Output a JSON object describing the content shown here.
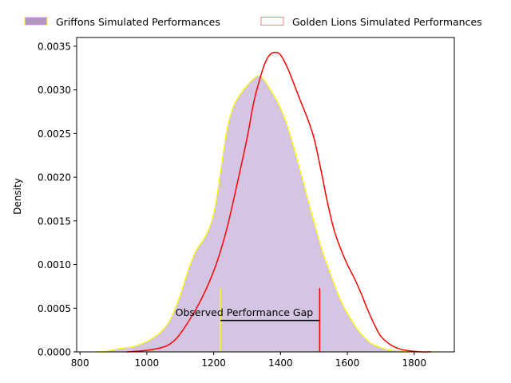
{
  "chart_data": {
    "type": "area",
    "title": "",
    "xlabel": "",
    "ylabel": "Density",
    "xlim": [
      790,
      1920
    ],
    "ylim": [
      0,
      0.0036
    ],
    "xticks": [
      800,
      1000,
      1200,
      1400,
      1600,
      1800
    ],
    "xtick_labels": [
      "800",
      "1000",
      "1200",
      "1400",
      "1600",
      "1800"
    ],
    "yticks": [
      0,
      0.0005,
      0.001,
      0.0015,
      0.002,
      0.0025,
      0.003,
      0.0035
    ],
    "ytick_labels": [
      "0.0000",
      "0.0005",
      "0.0010",
      "0.0015",
      "0.0020",
      "0.0025",
      "0.0030",
      "0.0035"
    ],
    "grid": false,
    "legend_placement": "top, above plot, two columns",
    "series": [
      {
        "name": "Griffons Simulated Performances",
        "style": "filled",
        "fill_color": "#9b72b9",
        "fill_opacity": 0.42,
        "line_color": "#ffff00",
        "x": [
          845,
          880,
          920,
          960,
          1000,
          1040,
          1070,
          1100,
          1125,
          1150,
          1175,
          1200,
          1220,
          1240,
          1260,
          1280,
          1300,
          1320,
          1335,
          1350,
          1370,
          1390,
          1410,
          1430,
          1450,
          1470,
          1490,
          1510,
          1530,
          1550,
          1570,
          1590,
          1610,
          1630,
          1650,
          1670,
          1700,
          1730,
          1760,
          1800,
          1840,
          1870
        ],
        "values": [
          0.0,
          1e-05,
          4e-05,
          6e-05,
          0.00012,
          0.00022,
          0.00037,
          0.00065,
          0.00095,
          0.00118,
          0.00132,
          0.00158,
          0.00205,
          0.00255,
          0.00282,
          0.00295,
          0.00305,
          0.00313,
          0.00316,
          0.00312,
          0.003,
          0.00287,
          0.0027,
          0.00247,
          0.0022,
          0.00192,
          0.00163,
          0.00135,
          0.0011,
          0.00089,
          0.00068,
          0.00051,
          0.00038,
          0.00026,
          0.00017,
          0.0001,
          5e-05,
          2e-05,
          1e-05,
          0.0,
          0.0,
          0.0
        ]
      },
      {
        "name": "Golden Lions Simulated Performances",
        "style": "line",
        "line_color": "#ff0000",
        "legend_edge_color": "#f08080",
        "x": [
          940,
          980,
          1020,
          1060,
          1090,
          1120,
          1150,
          1180,
          1210,
          1240,
          1270,
          1300,
          1320,
          1340,
          1355,
          1370,
          1385,
          1400,
          1420,
          1440,
          1460,
          1480,
          1500,
          1520,
          1540,
          1560,
          1580,
          1600,
          1620,
          1640,
          1660,
          1680,
          1700,
          1730,
          1760,
          1790,
          1820,
          1850
        ],
        "values": [
          0.0,
          1e-05,
          3e-05,
          7e-05,
          0.00016,
          0.00032,
          0.00051,
          0.00074,
          0.00103,
          0.00142,
          0.00192,
          0.00245,
          0.00286,
          0.00315,
          0.00332,
          0.00341,
          0.00343,
          0.0034,
          0.00326,
          0.00307,
          0.00287,
          0.00268,
          0.00245,
          0.0021,
          0.00172,
          0.0014,
          0.00118,
          0.001,
          0.00085,
          0.00068,
          0.00049,
          0.00032,
          0.00018,
          8e-05,
          3e-05,
          1e-05,
          0.0,
          0.0
        ]
      }
    ],
    "annotations": [
      {
        "kind": "vline",
        "name": "griffons-observed-line",
        "x": 1220,
        "y_max": 0.00073,
        "color": "#ffff00"
      },
      {
        "kind": "vline",
        "name": "golden-lions-observed-line",
        "x": 1517,
        "y_max": 0.00073,
        "color": "#ff0000"
      },
      {
        "kind": "hline",
        "name": "performance-gap-line",
        "x_start": 1220,
        "x_end": 1517,
        "y": 0.00036,
        "color": "#000000"
      },
      {
        "kind": "text",
        "name": "performance-gap-label",
        "text": "Observed Performance Gap",
        "x": 1368,
        "y": 0.00041
      }
    ]
  }
}
